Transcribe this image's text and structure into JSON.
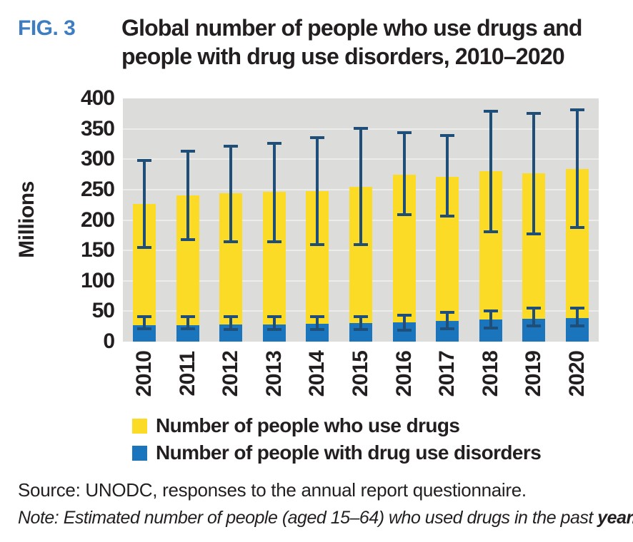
{
  "figure": {
    "label": "FIG. 3",
    "title": "Global number of people who use drugs and people with drug use disorders, 2010–2020"
  },
  "chart_data": {
    "type": "bar",
    "title": "Global number of people who use drugs and people with drug use disorders, 2010–2020",
    "xlabel": "",
    "ylabel": "Millions",
    "ylim": [
      0,
      400
    ],
    "ytick_interval": 50,
    "yticks": [
      400,
      350,
      300,
      250,
      200,
      150,
      100,
      50,
      0
    ],
    "grid": true,
    "plot_background": "#dcdcda",
    "gridline_color": "#ececea",
    "error_bar_color": "#1f4e79",
    "legend_position": "bottom-left",
    "categories": [
      "2010",
      "2011",
      "2012",
      "2013",
      "2014",
      "2015",
      "2016",
      "2017",
      "2018",
      "2019",
      "2020"
    ],
    "series": [
      {
        "name": "Number of people who use drugs",
        "color": "#fbdb26",
        "values": [
          226,
          240,
          244,
          246,
          247,
          255,
          275,
          271,
          280,
          277,
          284
        ],
        "error_low": [
          152,
          166,
          162,
          162,
          157,
          157,
          206,
          204,
          178,
          175,
          185
        ],
        "error_high": [
          300,
          315,
          324,
          329,
          338,
          353,
          346,
          341,
          381,
          378,
          384
        ]
      },
      {
        "name": "Number of people with drug use disorders",
        "color": "#1b75bc",
        "values": [
          27,
          27,
          28,
          28,
          29,
          30,
          32,
          34,
          36,
          38,
          39
        ],
        "error_low": [
          19,
          19,
          18,
          18,
          18,
          18,
          17,
          19,
          20,
          23,
          24
        ],
        "error_high": [
          43,
          43,
          43,
          43,
          43,
          44,
          46,
          50,
          53,
          57,
          57
        ]
      }
    ]
  },
  "legend": {
    "items": [
      {
        "label": "Number of people who use drugs",
        "color": "#fbdb26"
      },
      {
        "label": "Number of people with drug use disorders",
        "color": "#1b75bc"
      }
    ]
  },
  "source": "Source: UNODC, responses to the annual report questionnaire.",
  "note": {
    "prefix": "Note: Estimated number of people (aged 15–64) who used drugs in the past ",
    "bold_end": "year."
  }
}
